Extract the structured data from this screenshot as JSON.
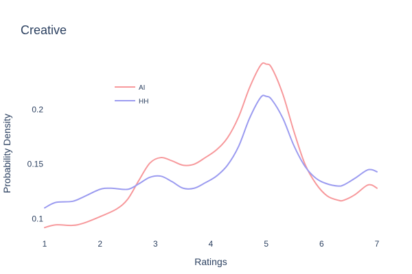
{
  "chart_data": {
    "type": "line",
    "title": "Creative",
    "xlabel": "Ratings",
    "ylabel": "Probability Density",
    "xlim": [
      1,
      7
    ],
    "ylim": [
      0.084,
      0.25
    ],
    "x_ticks": [
      1,
      2,
      3,
      4,
      5,
      6,
      7
    ],
    "y_ticks": [
      0.1,
      0.15,
      0.2
    ],
    "grid": false,
    "legend_position": "top-left",
    "series": [
      {
        "name": "AI",
        "color": "#f7989b",
        "points": [
          [
            1.0,
            0.092
          ],
          [
            1.2,
            0.0945
          ],
          [
            1.5,
            0.094
          ],
          [
            1.7,
            0.096
          ],
          [
            2.0,
            0.102
          ],
          [
            2.3,
            0.109
          ],
          [
            2.5,
            0.118
          ],
          [
            2.7,
            0.135
          ],
          [
            2.9,
            0.151
          ],
          [
            3.1,
            0.156
          ],
          [
            3.3,
            0.153
          ],
          [
            3.5,
            0.149
          ],
          [
            3.7,
            0.15
          ],
          [
            3.9,
            0.156
          ],
          [
            4.1,
            0.163
          ],
          [
            4.3,
            0.174
          ],
          [
            4.5,
            0.193
          ],
          [
            4.7,
            0.22
          ],
          [
            4.9,
            0.2405
          ],
          [
            5.0,
            0.2415
          ],
          [
            5.1,
            0.238
          ],
          [
            5.3,
            0.214
          ],
          [
            5.5,
            0.18
          ],
          [
            5.7,
            0.15
          ],
          [
            5.9,
            0.132
          ],
          [
            6.1,
            0.121
          ],
          [
            6.3,
            0.117
          ],
          [
            6.4,
            0.117
          ],
          [
            6.6,
            0.122
          ],
          [
            6.8,
            0.13
          ],
          [
            6.9,
            0.131
          ],
          [
            7.0,
            0.128
          ]
        ]
      },
      {
        "name": "HH",
        "color": "#9b9bf0",
        "points": [
          [
            1.0,
            0.11
          ],
          [
            1.2,
            0.115
          ],
          [
            1.5,
            0.116
          ],
          [
            1.7,
            0.12
          ],
          [
            2.0,
            0.127
          ],
          [
            2.2,
            0.128
          ],
          [
            2.5,
            0.127
          ],
          [
            2.7,
            0.132
          ],
          [
            2.9,
            0.138
          ],
          [
            3.1,
            0.139
          ],
          [
            3.3,
            0.134
          ],
          [
            3.5,
            0.128
          ],
          [
            3.7,
            0.128
          ],
          [
            3.9,
            0.133
          ],
          [
            4.1,
            0.139
          ],
          [
            4.3,
            0.149
          ],
          [
            4.5,
            0.166
          ],
          [
            4.7,
            0.192
          ],
          [
            4.9,
            0.211
          ],
          [
            5.0,
            0.212
          ],
          [
            5.1,
            0.209
          ],
          [
            5.3,
            0.192
          ],
          [
            5.5,
            0.167
          ],
          [
            5.7,
            0.148
          ],
          [
            5.9,
            0.137
          ],
          [
            6.1,
            0.132
          ],
          [
            6.3,
            0.13
          ],
          [
            6.4,
            0.131
          ],
          [
            6.6,
            0.137
          ],
          [
            6.8,
            0.144
          ],
          [
            6.9,
            0.145
          ],
          [
            7.0,
            0.143
          ]
        ]
      }
    ]
  }
}
